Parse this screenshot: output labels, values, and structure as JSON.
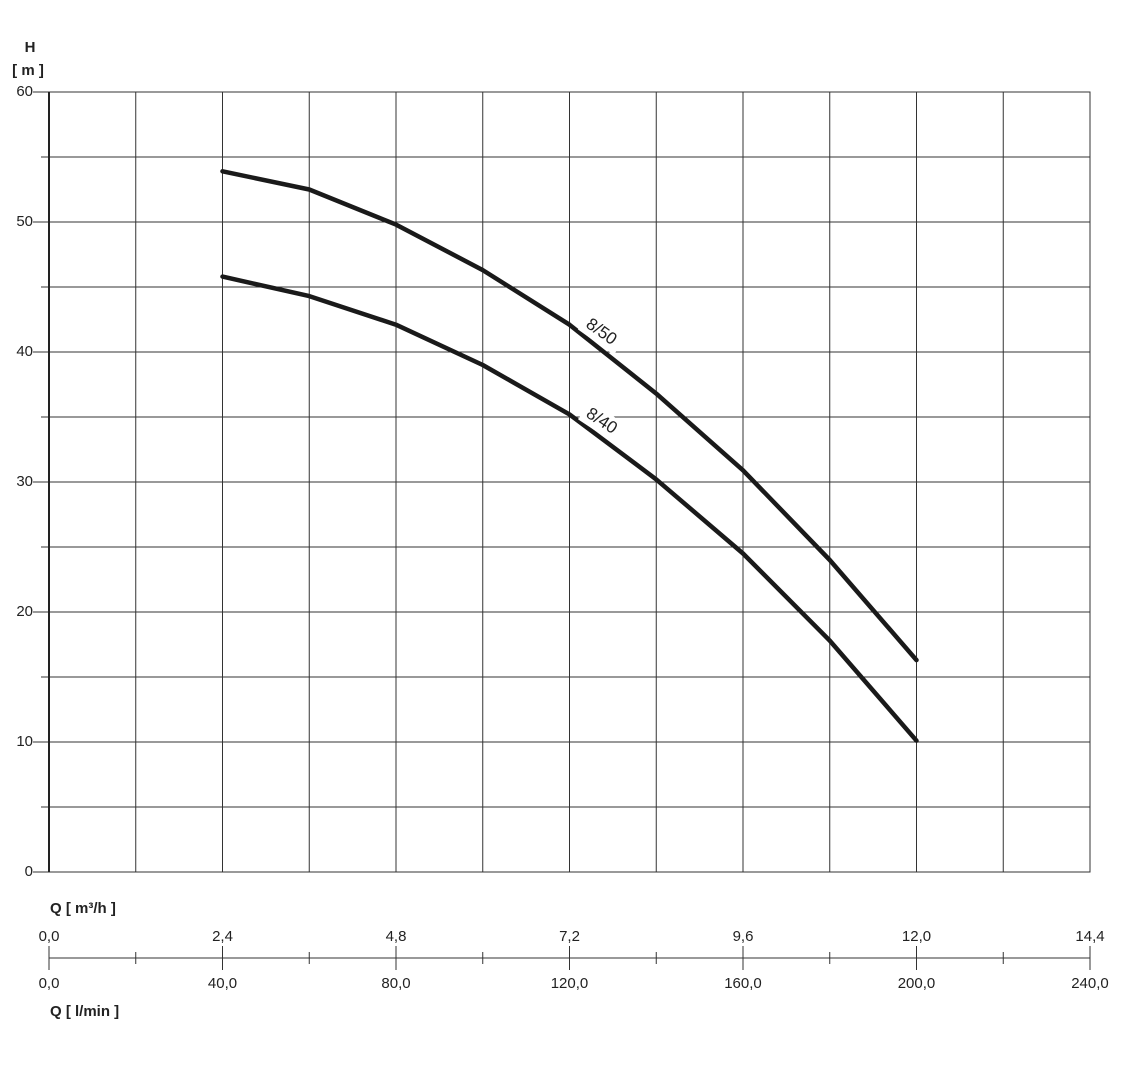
{
  "chart_data": {
    "type": "line",
    "y_label_top": "H",
    "y_label_unit": "[ m ]",
    "x2_label": "Q [ m³/h ]",
    "x_label": "Q [ l/min ]",
    "x": [
      40,
      60,
      80,
      100,
      120,
      140,
      160,
      180,
      200
    ],
    "series": [
      {
        "name": "8/50",
        "color": "#1a1a1a",
        "values": [
          53.9,
          52.5,
          49.8,
          46.3,
          42.1,
          36.8,
          30.9,
          24.0,
          16.3
        ]
      },
      {
        "name": "8/40",
        "color": "#1a1a1a",
        "values": [
          45.8,
          44.3,
          42.1,
          39.0,
          35.2,
          30.2,
          24.5,
          17.8,
          10.1
        ]
      }
    ],
    "xlim": [
      0,
      240
    ],
    "xticks": [
      {
        "value": 0,
        "label": "0,0"
      },
      {
        "value": 40,
        "label": "40,0"
      },
      {
        "value": 80,
        "label": "80,0"
      },
      {
        "value": 120,
        "label": "120,0"
      },
      {
        "value": 160,
        "label": "160,0"
      },
      {
        "value": 200,
        "label": "200,0"
      },
      {
        "value": 240,
        "label": "240,0"
      }
    ],
    "x2lim": [
      0,
      14.4
    ],
    "x2ticks": [
      {
        "value": 0,
        "label": "0,0"
      },
      {
        "value": 2.4,
        "label": "2,4"
      },
      {
        "value": 4.8,
        "label": "4,8"
      },
      {
        "value": 7.2,
        "label": "7,2"
      },
      {
        "value": 9.6,
        "label": "9,6"
      },
      {
        "value": 12,
        "label": "12,0"
      },
      {
        "value": 14.4,
        "label": "14,4"
      }
    ],
    "ylim": [
      0,
      60
    ],
    "yticks": [
      0,
      10,
      20,
      30,
      40,
      50,
      60
    ],
    "grid": true
  }
}
